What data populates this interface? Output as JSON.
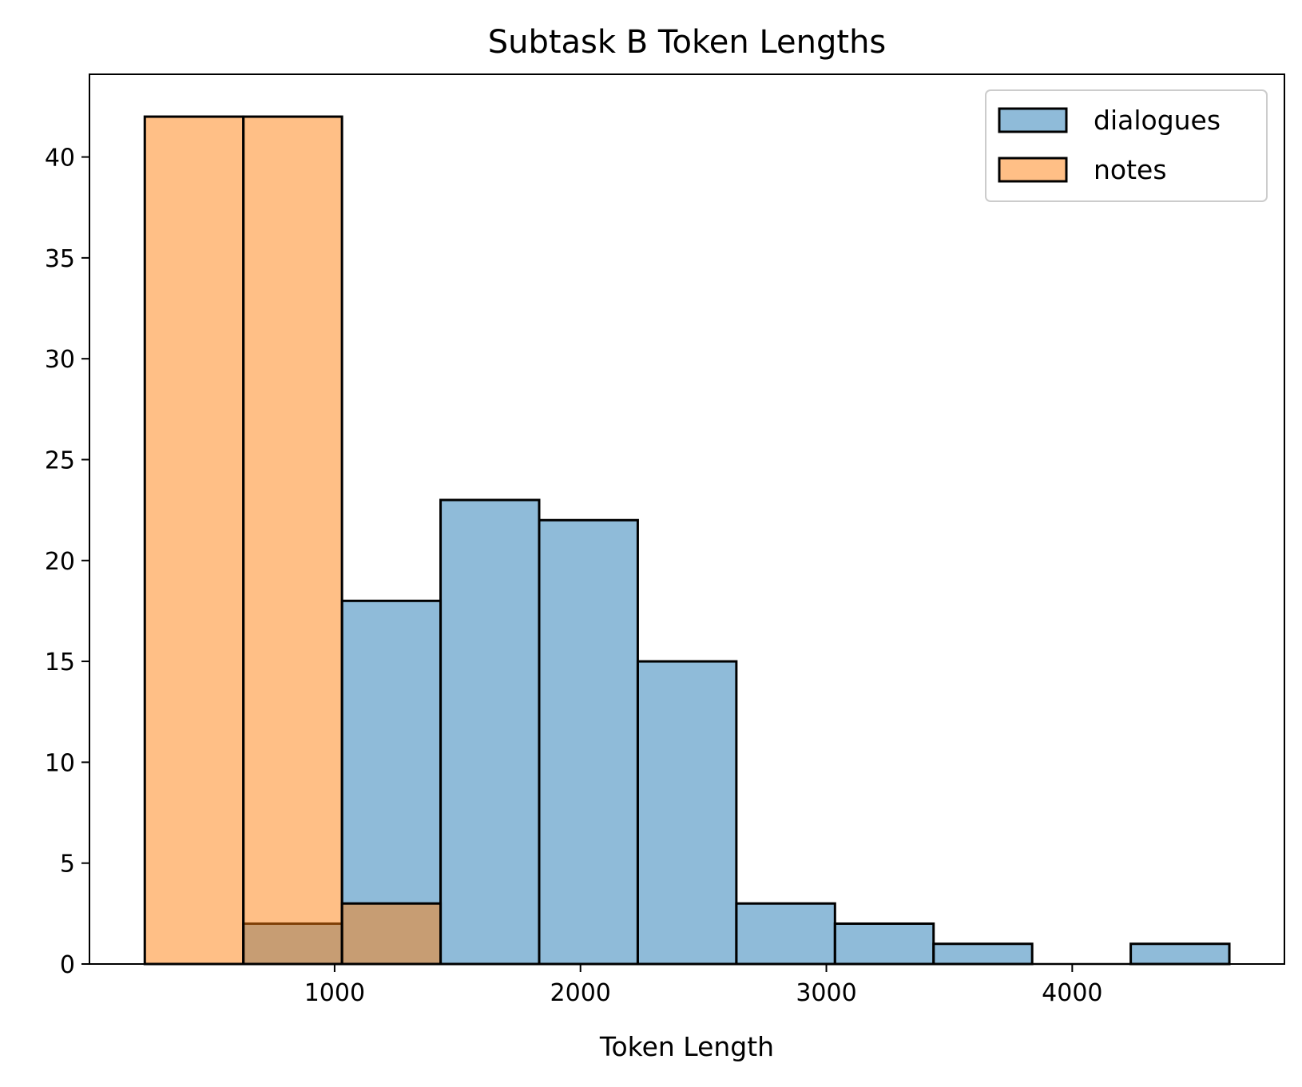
{
  "chart_data": {
    "type": "histogram",
    "title": "Subtask B Token Lengths",
    "xlabel": "Token Length",
    "ylabel": "",
    "xlim": [
      3,
      4863
    ],
    "ylim": [
      0,
      44.1
    ],
    "xticks": [
      1000,
      2000,
      3000,
      4000
    ],
    "yticks": [
      0,
      5,
      10,
      15,
      20,
      25,
      30,
      35,
      40
    ],
    "bin_edges": [
      228,
      629,
      1030,
      1431,
      1832,
      2233,
      2634,
      3035,
      3436,
      3837,
      4238,
      4639
    ],
    "legend_position": "top-right",
    "grid": false,
    "series": [
      {
        "name": "dialogues",
        "color": "#1f77b4",
        "alpha": 0.5,
        "counts": [
          0,
          2,
          18,
          23,
          22,
          15,
          3,
          2,
          1,
          0,
          1
        ]
      },
      {
        "name": "notes",
        "color": "#ff7f0e",
        "alpha": 0.5,
        "counts": [
          42,
          42,
          3,
          0,
          0,
          0,
          0,
          0,
          0,
          0,
          0
        ]
      }
    ]
  }
}
